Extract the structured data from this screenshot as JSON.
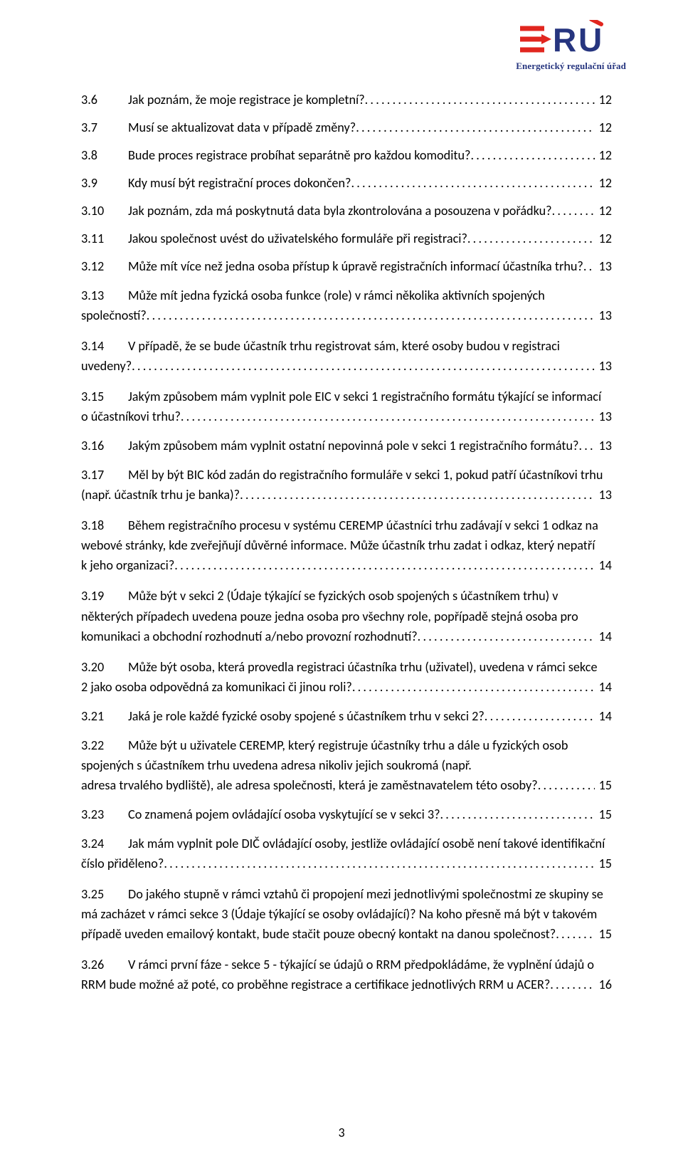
{
  "logo": {
    "name_main": "ERÚ",
    "name_sub": "Energetický regulační úřad",
    "color_e": "#e1261f",
    "color_ru": "#26357f",
    "accent_red": "#e1261f",
    "accent_blue": "#26357f"
  },
  "page_number": "3",
  "entries": [
    {
      "num": "3.6",
      "text": "Jak poznám, že moje registrace je kompletní?",
      "page": "12"
    },
    {
      "num": "3.7",
      "text": "Musí se aktualizovat data v případě změny?",
      "page": "12"
    },
    {
      "num": "3.8",
      "text": "Bude proces registrace probíhat separátně pro každou komoditu?",
      "page": "12"
    },
    {
      "num": "3.9",
      "text": "Kdy musí být registrační proces dokončen?",
      "page": "12"
    },
    {
      "num": "3.10",
      "text": "Jak poznám, zda má poskytnutá data byla zkontrolována a posouzena v pořádku?",
      "page": "12"
    },
    {
      "num": "3.11",
      "text": "Jakou společnost uvést do uživatelského formuláře při registraci?",
      "page": "12"
    },
    {
      "num": "3.12",
      "text": "Může mít více než jedna osoba přístup k úpravě registračních informací účastníka trhu?",
      "page": "13"
    },
    {
      "num": "3.13",
      "lines": [
        "Může mít jedna fyzická osoba funkce (role) v rámci několika aktivních spojených"
      ],
      "tail": "společností?",
      "page": "13"
    },
    {
      "num": "3.14",
      "lines": [
        "V případě, že se bude účastník trhu registrovat sám, které osoby budou v registraci"
      ],
      "tail": "uvedeny?",
      "page": "13"
    },
    {
      "num": "3.15",
      "lines": [
        "Jakým způsobem mám vyplnit pole EIC v sekci 1 registračního formátu týkající se informací"
      ],
      "tail": "o účastníkovi trhu?",
      "page": "13"
    },
    {
      "num": "3.16",
      "text": "Jakým způsobem mám vyplnit ostatní nepovinná pole v sekci 1 registračního formátu?",
      "page": "13"
    },
    {
      "num": "3.17",
      "lines": [
        "Měl by být BIC kód zadán do registračního formuláře v sekci 1, pokud patří účastníkovi trhu"
      ],
      "tail": "(např. účastník trhu je banka)?",
      "page": "13"
    },
    {
      "num": "3.18",
      "lines": [
        "Během registračního procesu v systému CEREMP účastníci trhu zadávají v sekci 1 odkaz na",
        "webové stránky, kde zveřejňují důvěrné informace. Může účastník trhu zadat i odkaz, který nepatří"
      ],
      "tail": "k jeho organizaci?",
      "page": "14"
    },
    {
      "num": "3.19",
      "lines": [
        "Může být v sekci 2 (Údaje týkající se fyzických osob spojených s účastníkem trhu) v",
        "některých případech uvedena pouze jedna osoba pro všechny role, popřípadě stejná osoba pro"
      ],
      "tail": "komunikaci a obchodní rozhodnutí a/nebo provozní rozhodnutí?",
      "page": "14"
    },
    {
      "num": "3.20",
      "lines": [
        "Může být osoba, která provedla registraci účastníka trhu (uživatel), uvedena v rámci sekce"
      ],
      "tail": "2 jako osoba odpovědná za komunikaci či jinou roli?",
      "page": "14"
    },
    {
      "num": "3.21",
      "text": "Jaká je role každé fyzické osoby spojené s účastníkem trhu v sekci 2?",
      "page": "14"
    },
    {
      "num": "3.22",
      "lines": [
        "Může být u uživatele CEREMP, který registruje účastníky trhu a dále u fyzických osob",
        "spojených s účastníkem trhu uvedena adresa nikoliv jejich soukromá (např."
      ],
      "tail": "adresa trvalého bydliště), ale adresa společnosti, která je zaměstnavatelem této osoby?",
      "page": "15"
    },
    {
      "num": "3.23",
      "text": "Co znamená pojem ovládající osoba vyskytující se v sekci 3?",
      "page": "15"
    },
    {
      "num": "3.24",
      "lines": [
        "Jak mám vyplnit pole DIČ ovládající osoby, jestliže ovládající osobě není takové identifikační"
      ],
      "tail": "číslo přiděleno?",
      "page": "15"
    },
    {
      "num": "3.25",
      "lines": [
        "Do jakého stupně v rámci vztahů či propojení mezi jednotlivými společnostmi ze skupiny se",
        "má zacházet v rámci sekce 3 (Údaje týkající se osoby ovládající)? Na koho přesně má být v takovém"
      ],
      "tail": "případě uveden emailový kontakt, bude stačit pouze obecný kontakt na danou společnost?",
      "page": "15"
    },
    {
      "num": "3.26",
      "lines": [
        "V rámci první fáze - sekce 5 - týkající se údajů o RRM předpokládáme, že vyplnění údajů o"
      ],
      "tail": "RRM bude možné až poté, co proběhne registrace a certifikace jednotlivých RRM u ACER?",
      "page": "16"
    }
  ]
}
